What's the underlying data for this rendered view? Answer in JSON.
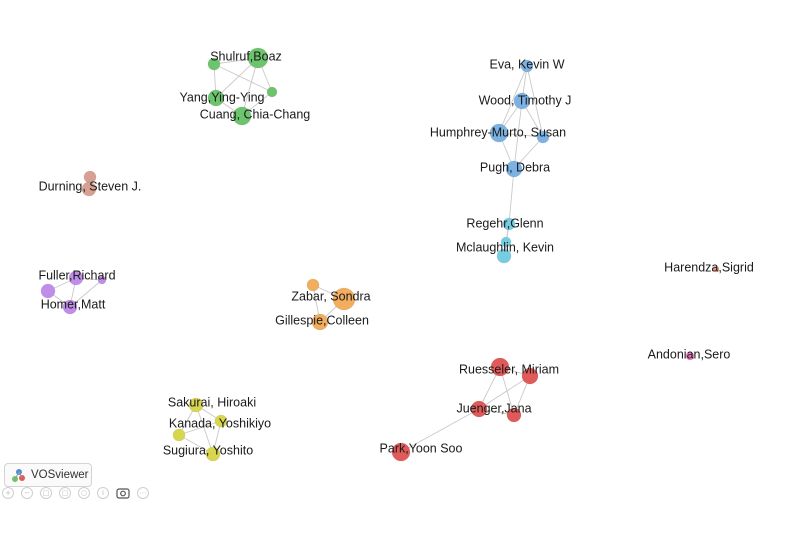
{
  "branding": {
    "name": "VOSviewer"
  },
  "colors": {
    "green": "#6cc46c",
    "blue": "#7cb2e3",
    "cyan": "#76cde1",
    "brown": "#d7a092",
    "purple": "#c08ee8",
    "orange": "#f2ad5f",
    "yellow": "#d8d64e",
    "red": "#e05a5a",
    "pink": "#f07ac2",
    "salmon": "#f09a8a",
    "edge": "#c9c9c9"
  },
  "toolbar": [
    "zoom-in-icon",
    "zoom-out-icon",
    "fit-icon",
    "screenshot-icon",
    "search-icon",
    "info-icon",
    "camera-icon",
    "more-icon"
  ],
  "nodes": [
    {
      "label": "Shulruf,Boaz",
      "cluster": "green"
    },
    {
      "label": "Yang,Ying-Ying",
      "cluster": "green"
    },
    {
      "label": "Cuang, Chia-Chang",
      "cluster": "green"
    },
    {
      "label": "Eva, Kevin W",
      "cluster": "blue"
    },
    {
      "label": "Wood, Timothy J",
      "cluster": "blue"
    },
    {
      "label": "Humphrey-Murto, Susan",
      "cluster": "blue"
    },
    {
      "label": "Pugh, Debra",
      "cluster": "blue"
    },
    {
      "label": "Regehr,Glenn",
      "cluster": "cyan"
    },
    {
      "label": "Mclaughlin, Kevin",
      "cluster": "cyan"
    },
    {
      "label": "Durning, Steven J.",
      "cluster": "brown"
    },
    {
      "label": "Fuller,Richard",
      "cluster": "purple"
    },
    {
      "label": "Homer,Matt",
      "cluster": "purple"
    },
    {
      "label": "Zabar, Sondra",
      "cluster": "orange"
    },
    {
      "label": "Gillespie,Colleen",
      "cluster": "orange"
    },
    {
      "label": "Harendza,Sigrid",
      "cluster": "salmon"
    },
    {
      "label": "Andonian,Sero",
      "cluster": "pink"
    },
    {
      "label": "Ruesseler, Miriam",
      "cluster": "red"
    },
    {
      "label": "Juenger,Jana",
      "cluster": "red"
    },
    {
      "label": "Park,Yoon Soo",
      "cluster": "red"
    },
    {
      "label": "Sakurai, Hiroaki",
      "cluster": "yellow"
    },
    {
      "label": "Kanada, Yoshikiyo",
      "cluster": "yellow"
    },
    {
      "label": "Sugiura, Yoshito",
      "cluster": "yellow"
    }
  ]
}
